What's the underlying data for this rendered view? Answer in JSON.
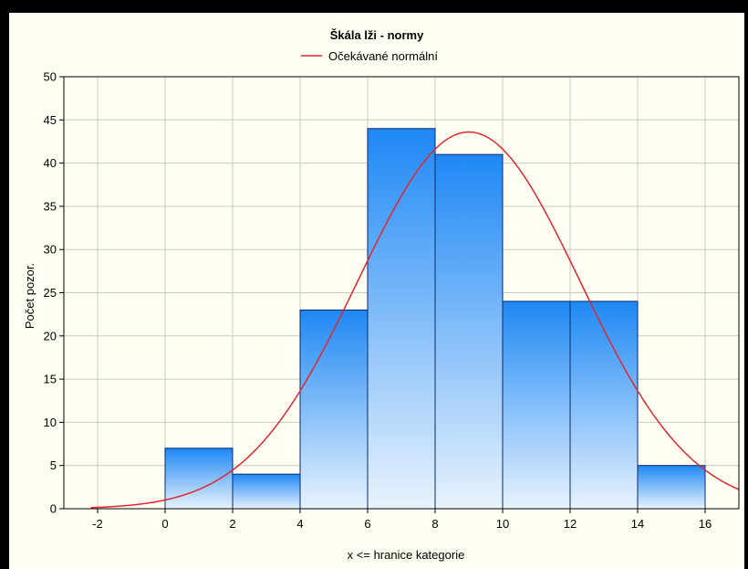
{
  "chart_data": {
    "type": "bar",
    "title": "Škála lži - normy",
    "xlabel": "x <= hranice kategorie",
    "ylabel": "Počet pozor.",
    "xlim": [
      -3,
      17
    ],
    "ylim": [
      0,
      50
    ],
    "xticks": [
      "-2",
      "0",
      "2",
      "4",
      "6",
      "8",
      "10",
      "12",
      "14",
      "16"
    ],
    "yticks": [
      "0",
      "5",
      "10",
      "15",
      "20",
      "25",
      "30",
      "35",
      "40",
      "45",
      "50"
    ],
    "grid": true,
    "bins": [
      {
        "from": 0,
        "to": 2,
        "value": 7
      },
      {
        "from": 2,
        "to": 4,
        "value": 4
      },
      {
        "from": 4,
        "to": 6,
        "value": 23
      },
      {
        "from": 6,
        "to": 8,
        "value": 44
      },
      {
        "from": 8,
        "to": 10,
        "value": 41
      },
      {
        "from": 10,
        "to": 12,
        "value": 24
      },
      {
        "from": 12,
        "to": 14,
        "value": 24
      },
      {
        "from": 14,
        "to": 16,
        "value": 5
      }
    ],
    "normal_curve": {
      "name": "Očekávané normální",
      "mean": 9.0,
      "peak": 43.6,
      "sd": 3.28
    },
    "legend_position": "top-center",
    "colors": {
      "bar_top": "#1e88f5",
      "bar_bottom": "#e8f3fd",
      "bar_stroke": "#0a2a6a",
      "curve": "#e0272f",
      "grid": "#c8c8c8",
      "background": "#fffef3"
    }
  }
}
